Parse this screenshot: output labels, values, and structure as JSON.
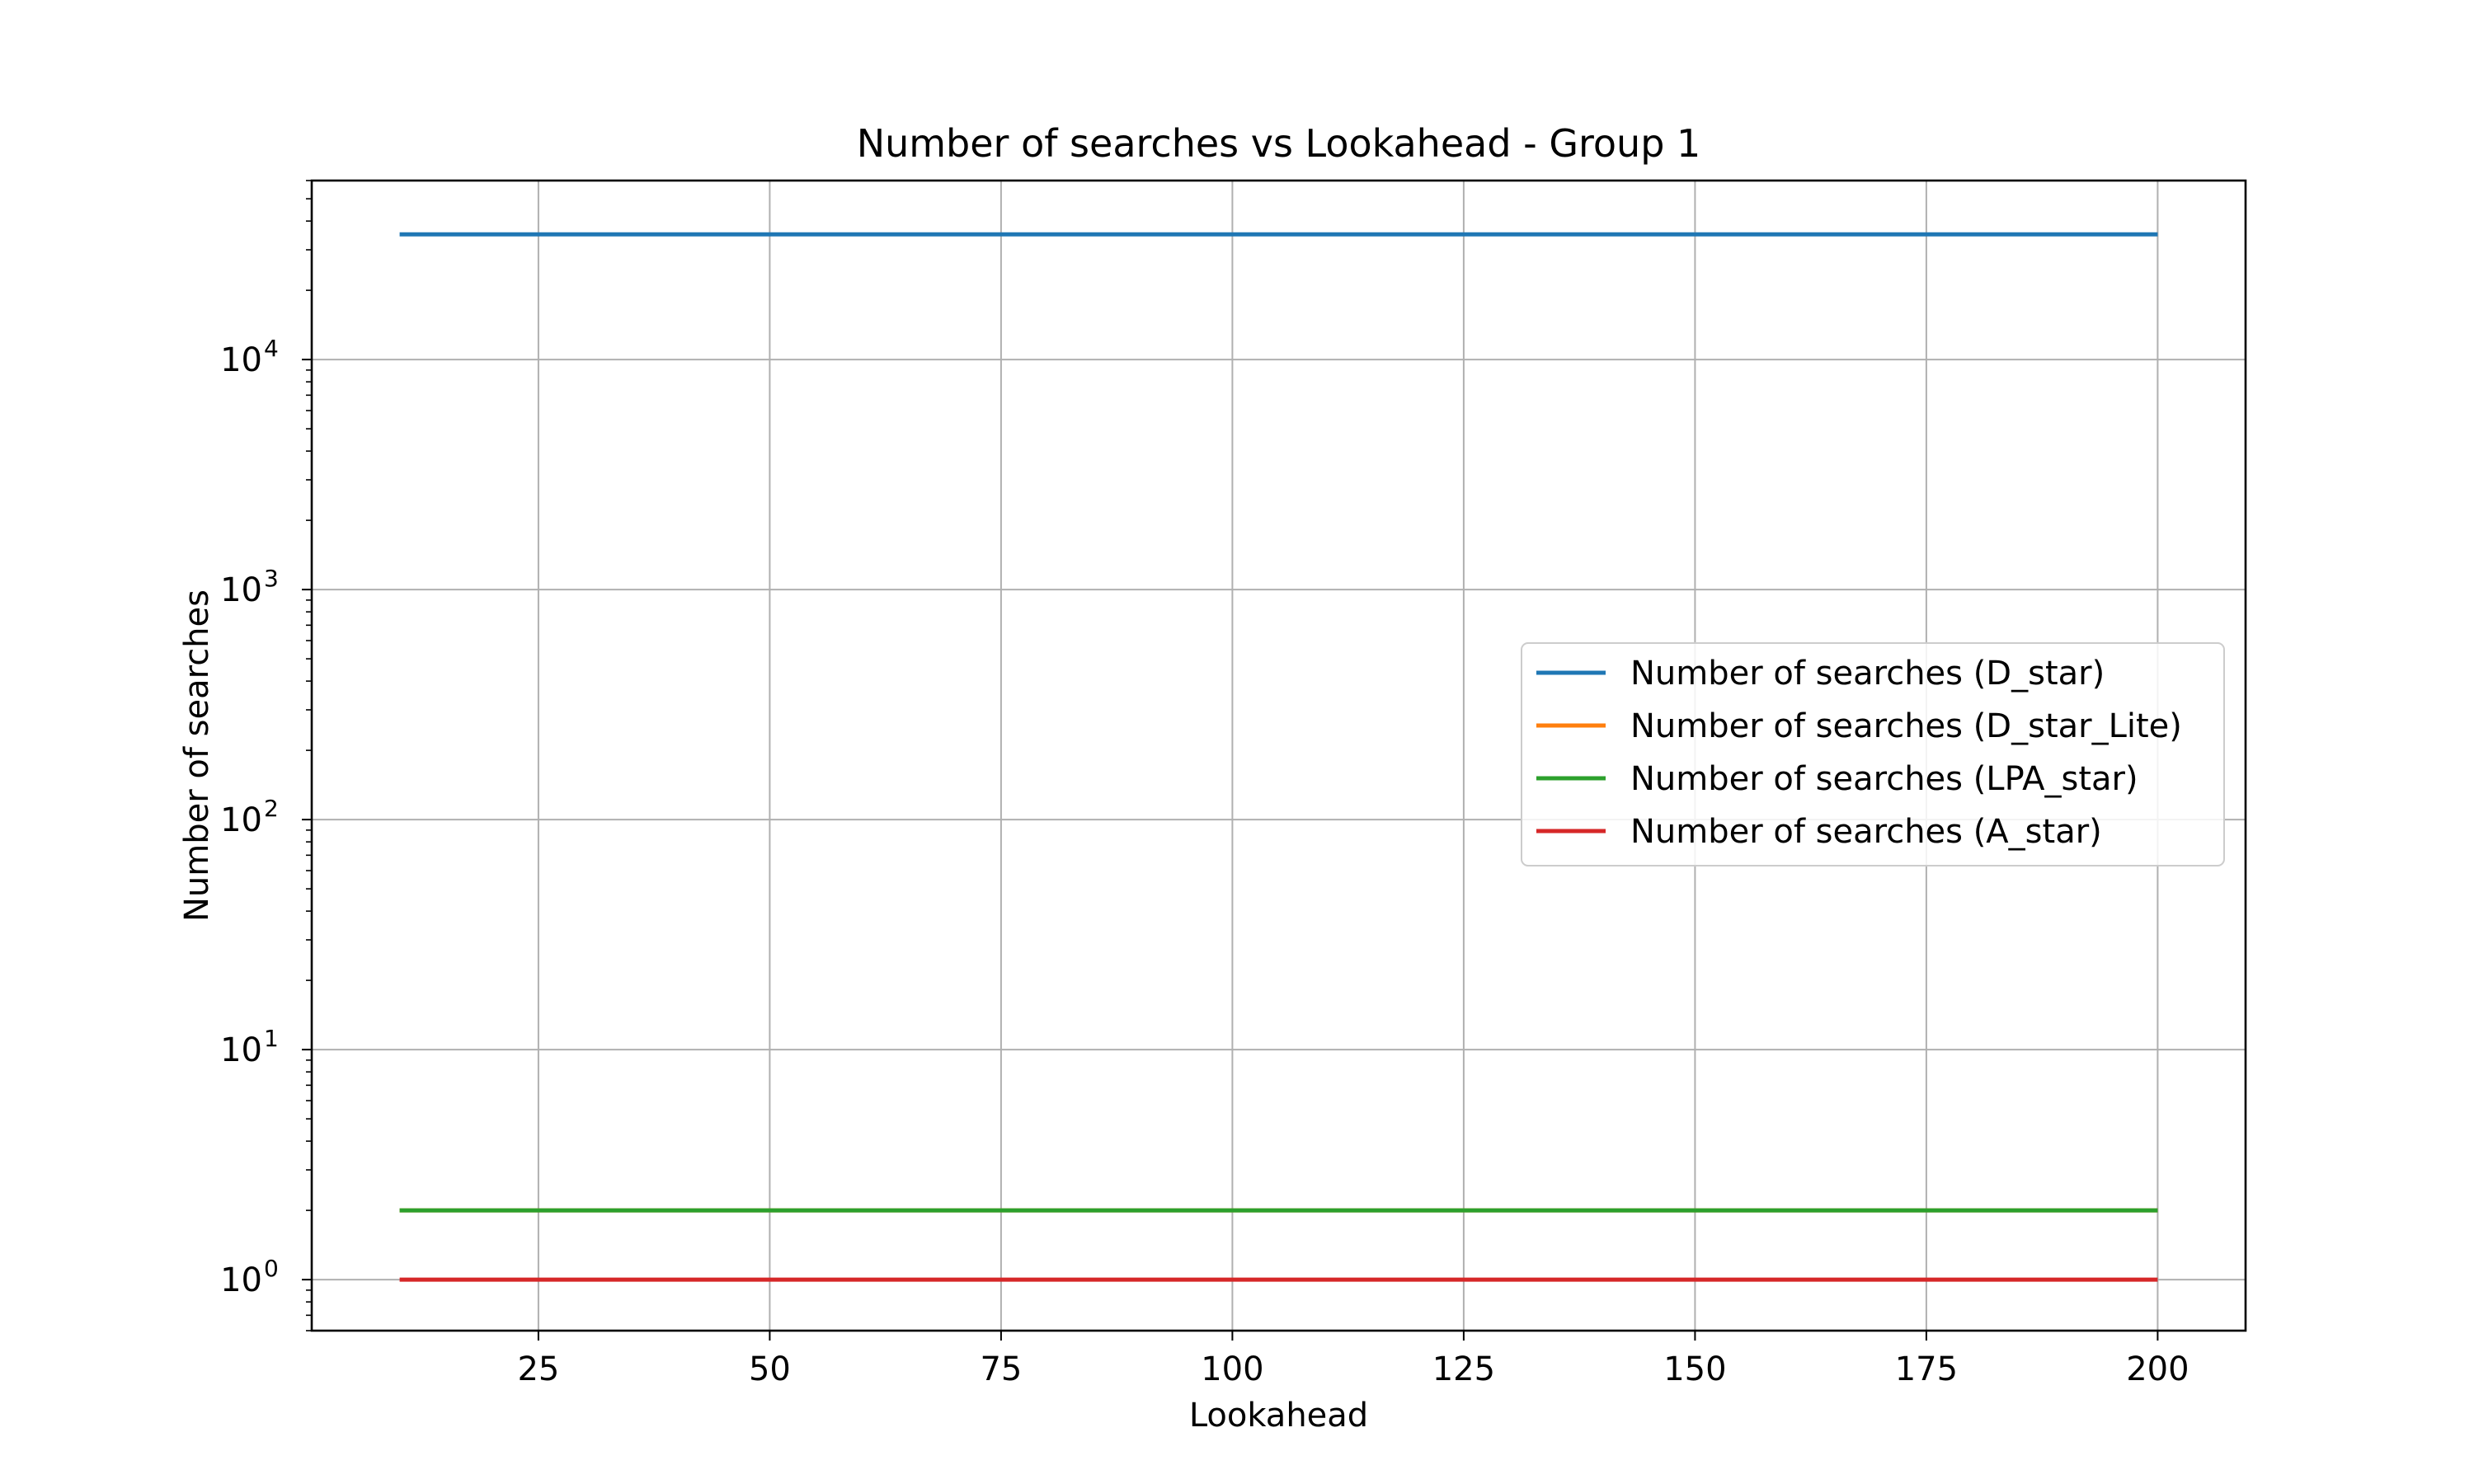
{
  "chart_data": {
    "type": "line",
    "title": "Number of searches vs Lookahead - Group 1",
    "xlabel": "Lookahead",
    "ylabel": "Number of searches",
    "yscale": "log",
    "xlim": [
      0.5,
      209.5
    ],
    "ylim": [
      0.6,
      60000
    ],
    "xticks": [
      25,
      50,
      75,
      100,
      125,
      150,
      175,
      200
    ],
    "xtick_labels": [
      "25",
      "50",
      "75",
      "100",
      "125",
      "150",
      "175",
      "200"
    ],
    "yticks": [
      {
        "value": 1,
        "base": "10",
        "exp": "0"
      },
      {
        "value": 10,
        "base": "10",
        "exp": "1"
      },
      {
        "value": 100,
        "base": "10",
        "exp": "2"
      },
      {
        "value": 1000,
        "base": "10",
        "exp": "3"
      },
      {
        "value": 10000,
        "base": "10",
        "exp": "4"
      }
    ],
    "grid": true,
    "legend_position": "center-right",
    "x": [
      10,
      200
    ],
    "series": [
      {
        "name": "Number of searches (D_star)",
        "color": "#1f77b4",
        "values": [
          35000,
          35000
        ]
      },
      {
        "name": "Number of searches (D_star_Lite)",
        "color": "#ff7f0e",
        "values": [
          2,
          2
        ]
      },
      {
        "name": "Number of searches (LPA_star)",
        "color": "#2ca02c",
        "values": [
          2,
          2
        ]
      },
      {
        "name": "Number of searches (A_star)",
        "color": "#d62728",
        "values": [
          1,
          1
        ]
      }
    ]
  }
}
